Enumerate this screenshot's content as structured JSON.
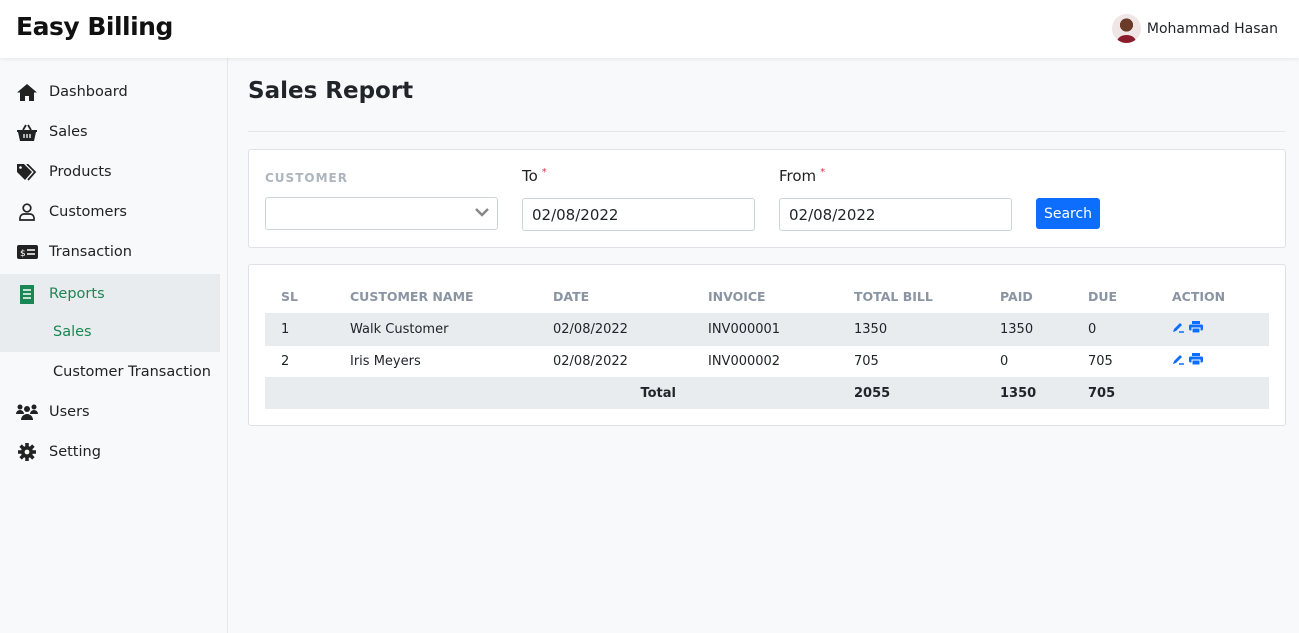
{
  "app": {
    "title": "Easy Billing"
  },
  "user": {
    "name": "Mohammad Hasan"
  },
  "sidebar": {
    "items": [
      {
        "label": "Dashboard",
        "icon": "home-icon"
      },
      {
        "label": "Sales",
        "icon": "basket-icon"
      },
      {
        "label": "Products",
        "icon": "tags-icon"
      },
      {
        "label": "Customers",
        "icon": "user-icon"
      },
      {
        "label": "Transaction",
        "icon": "money-check-icon"
      },
      {
        "label": "Reports",
        "icon": "receipt-icon",
        "active": true
      },
      {
        "label": "Sales",
        "sub": true,
        "active": true
      },
      {
        "label": "Customer Transaction",
        "sub": true
      },
      {
        "label": "Users",
        "icon": "users-icon"
      },
      {
        "label": "Setting",
        "icon": "gear-icon"
      }
    ]
  },
  "page": {
    "title": "Sales Report"
  },
  "filters": {
    "customer_label": "CUSTOMER",
    "customer_value": "",
    "to_label": "To",
    "to_value": "02/08/2022",
    "from_label": "From",
    "from_value": "02/08/2022",
    "required_mark": "*",
    "search_label": "Search"
  },
  "table": {
    "headers": [
      "SL",
      "CUSTOMER NAME",
      "DATE",
      "INVOICE",
      "TOTAL BILL",
      "PAID",
      "DUE",
      "ACTION"
    ],
    "rows": [
      [
        "1",
        "Walk Customer",
        "02/08/2022",
        "INV000001",
        "1350",
        "1350",
        "0"
      ],
      [
        "2",
        "Iris Meyers",
        "02/08/2022",
        "INV000002",
        "705",
        "0",
        "705"
      ]
    ],
    "total": {
      "label": "Total",
      "total_bill": "2055",
      "paid": "1350",
      "due": "705"
    }
  },
  "colors": {
    "accent": "#0d6efd",
    "active": "#198754"
  }
}
